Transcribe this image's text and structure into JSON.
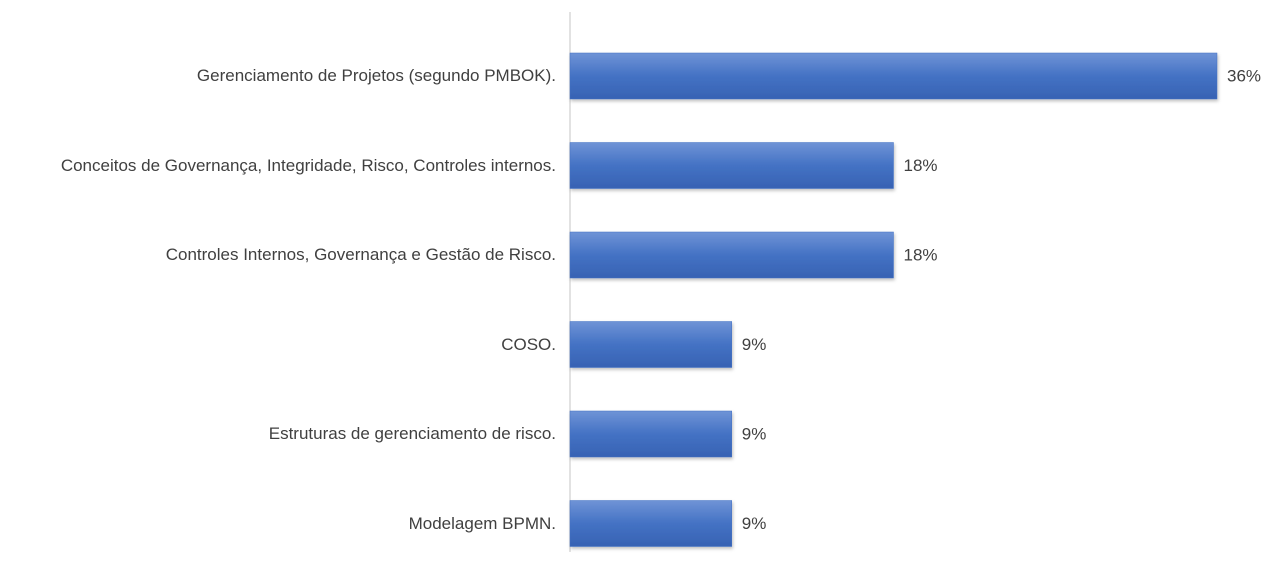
{
  "chart_data": {
    "type": "hbar",
    "categories": [
      "Gerenciamento de Projetos (segundo PMBOK).",
      "Conceitos de Governança, Integridade, Risco, Controles internos.",
      "Controles Internos, Governança e Gestão de Risco.",
      "COSO.",
      "Estruturas de gerenciamento de risco.",
      "Modelagem BPMN."
    ],
    "values": [
      36,
      18,
      18,
      9,
      9,
      9
    ],
    "value_labels": [
      "36%",
      "18%",
      "18%",
      "9%",
      "9%",
      "9%"
    ],
    "color": "#4472c4"
  }
}
